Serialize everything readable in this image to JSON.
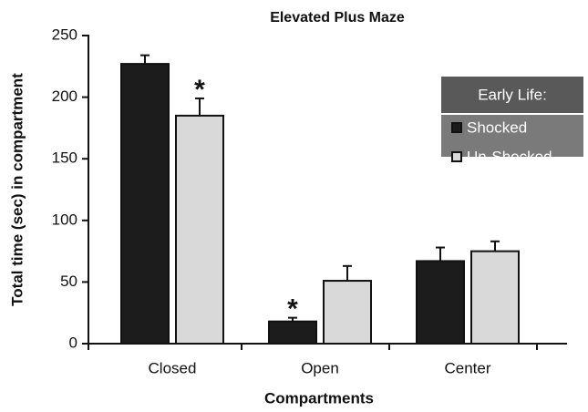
{
  "chart_data": {
    "type": "bar",
    "title": "Elevated Plus Maze",
    "x_label": "Compartments",
    "y_label": "Total time (sec) in compartment",
    "categories": [
      "Closed",
      "Open",
      "Center"
    ],
    "series": [
      {
        "name": "Shocked",
        "color": "#1c1c1c",
        "values": [
          227,
          18,
          67
        ],
        "errors": [
          7,
          3,
          11
        ]
      },
      {
        "name": "Un-Shocked",
        "color": "#d9d9d9",
        "values": [
          185,
          51,
          75
        ],
        "errors": [
          14,
          12,
          8
        ]
      }
    ],
    "annotations": [
      {
        "text": "*",
        "series": 1,
        "index": 0
      },
      {
        "text": "*",
        "series": 0,
        "index": 1
      }
    ],
    "legend_title": "Early Life:",
    "legend": "top-right",
    "ylim": [
      0,
      250
    ],
    "yticks": [
      0,
      50,
      100,
      150,
      200,
      250
    ]
  }
}
